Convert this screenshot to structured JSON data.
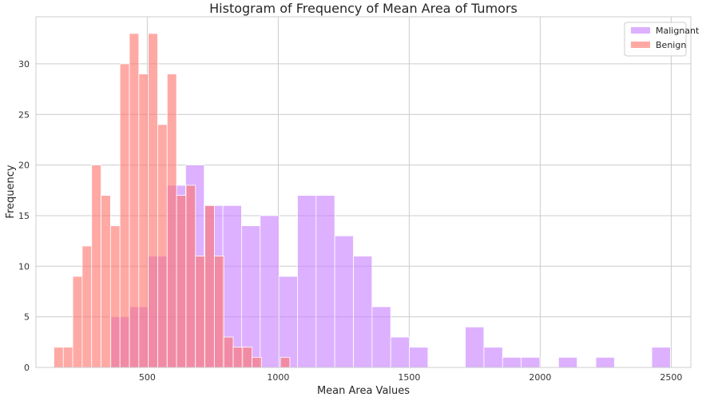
{
  "chart_data": {
    "type": "bar",
    "title": "Histogram of Frequency of Mean Area of Tumors",
    "xlabel": "Mean Area Values",
    "ylabel": "Frequency",
    "xlim": [
      75,
      2575
    ],
    "ylim": [
      0,
      34.65
    ],
    "xticks": [
      500,
      1000,
      1500,
      2000,
      2500
    ],
    "yticks": [
      0,
      5,
      10,
      15,
      20,
      25,
      30
    ],
    "grid": true,
    "legend_position": "top-right",
    "series": [
      {
        "name": "Malignant",
        "color": "#c77dff",
        "opacity": 0.6,
        "bin_start": 361.6,
        "bin_width": 71.18,
        "counts": [
          5,
          6,
          11,
          18,
          20,
          16,
          16,
          14,
          15,
          9,
          17,
          17,
          13,
          11,
          6,
          3,
          2,
          0,
          0,
          4,
          2,
          1,
          1,
          0,
          1,
          0,
          1,
          0,
          0,
          2
        ]
      },
      {
        "name": "Benign",
        "color": "#ff6f69",
        "opacity": 0.6,
        "bin_start": 143.5,
        "bin_width": 36.03,
        "counts": [
          2,
          2,
          9,
          12,
          20,
          17,
          14,
          30,
          33,
          29,
          33,
          24,
          29,
          17,
          18,
          11,
          16,
          11,
          3,
          2,
          2,
          1,
          0,
          0,
          1
        ]
      }
    ]
  }
}
